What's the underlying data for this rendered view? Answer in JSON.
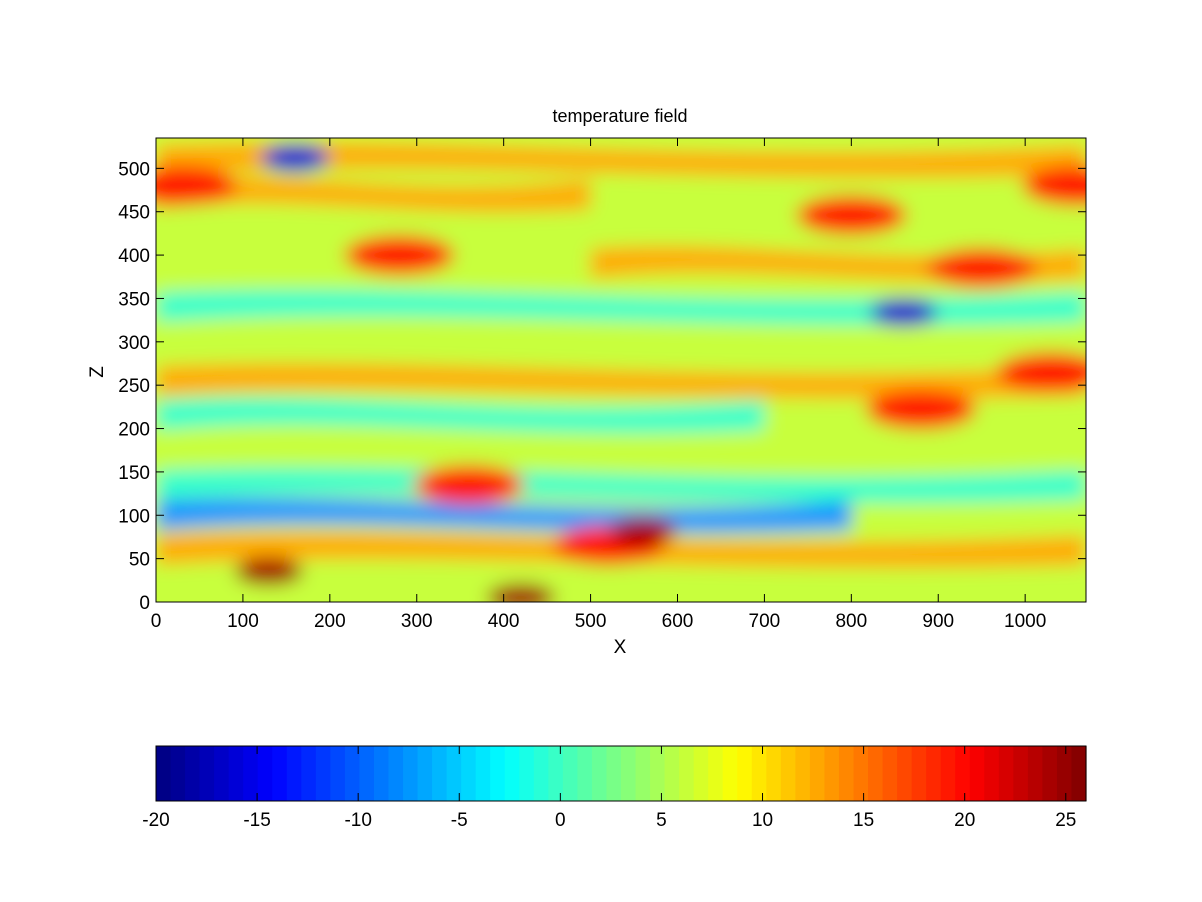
{
  "chart_data": {
    "type": "heatmap",
    "subtype": "filled-contour",
    "title": "temperature field",
    "xlabel": "X",
    "ylabel": "Z",
    "xlim": [
      0,
      1070
    ],
    "ylim": [
      0,
      535
    ],
    "x_ticks": [
      0,
      100,
      200,
      300,
      400,
      500,
      600,
      700,
      800,
      900,
      1000
    ],
    "y_ticks": [
      0,
      50,
      100,
      150,
      200,
      250,
      300,
      350,
      400,
      450,
      500
    ],
    "colormap": "jet",
    "colorbar": {
      "orientation": "horizontal",
      "placement": "bottom",
      "range": [
        -20,
        26
      ],
      "ticks": [
        -20,
        -15,
        -10,
        -5,
        0,
        5,
        10,
        15,
        20,
        25
      ]
    },
    "contour_levels": [
      {
        "level": -15,
        "color": "#0000d0"
      },
      {
        "level": -10,
        "color": "#1e96ff"
      },
      {
        "level": -5,
        "color": "#33ffcc"
      },
      {
        "level": 0,
        "color": "#c8ff3c"
      },
      {
        "level": 10,
        "color": "#ffaa00"
      },
      {
        "level": 17,
        "color": "#ff1a00"
      },
      {
        "level": 22,
        "color": "#a00000"
      }
    ],
    "features": [
      {
        "kind": "band",
        "z": 510,
        "x0": 0,
        "x1": 1070,
        "value": 12
      },
      {
        "kind": "band",
        "z": 470,
        "x0": 0,
        "x1": 500,
        "value": 11
      },
      {
        "kind": "band",
        "z": 430,
        "x0": 0,
        "x1": 1070,
        "value": 3
      },
      {
        "kind": "band",
        "z": 390,
        "x0": 500,
        "x1": 1070,
        "value": 13
      },
      {
        "kind": "band",
        "z": 340,
        "x0": 0,
        "x1": 1070,
        "value": -4
      },
      {
        "kind": "band",
        "z": 300,
        "x0": 0,
        "x1": 1070,
        "value": 2
      },
      {
        "kind": "band",
        "z": 255,
        "x0": 0,
        "x1": 1070,
        "value": 12
      },
      {
        "kind": "band",
        "z": 215,
        "x0": 0,
        "x1": 700,
        "value": -3
      },
      {
        "kind": "band",
        "z": 175,
        "x0": 0,
        "x1": 1070,
        "value": 3
      },
      {
        "kind": "band",
        "z": 135,
        "x0": 0,
        "x1": 1070,
        "value": -3
      },
      {
        "kind": "band",
        "z": 100,
        "x0": 0,
        "x1": 800,
        "value": -8
      },
      {
        "kind": "band",
        "z": 60,
        "x0": 0,
        "x1": 1070,
        "value": 13
      },
      {
        "kind": "band",
        "z": 15,
        "x0": 0,
        "x1": 1070,
        "value": 5
      },
      {
        "kind": "blob",
        "x": 30,
        "z": 480,
        "value": 20
      },
      {
        "kind": "blob",
        "x": 1060,
        "z": 480,
        "value": 20
      },
      {
        "kind": "blob",
        "x": 130,
        "z": 35,
        "value": 24
      },
      {
        "kind": "blob",
        "x": 520,
        "z": 65,
        "value": 20
      },
      {
        "kind": "blob",
        "x": 560,
        "z": 82,
        "value": 24
      },
      {
        "kind": "blob",
        "x": 420,
        "z": 5,
        "value": 24
      },
      {
        "kind": "blob",
        "x": 360,
        "z": 135,
        "value": 20
      },
      {
        "kind": "blob",
        "x": 280,
        "z": 400,
        "value": 19
      },
      {
        "kind": "blob",
        "x": 950,
        "z": 385,
        "value": 19
      },
      {
        "kind": "blob",
        "x": 860,
        "z": 334,
        "value": -14
      },
      {
        "kind": "blob",
        "x": 160,
        "z": 512,
        "value": -15
      },
      {
        "kind": "blob",
        "x": 800,
        "z": 446,
        "value": 20
      },
      {
        "kind": "blob",
        "x": 1030,
        "z": 265,
        "value": 19
      },
      {
        "kind": "blob",
        "x": 880,
        "z": 222,
        "value": 19
      }
    ]
  }
}
